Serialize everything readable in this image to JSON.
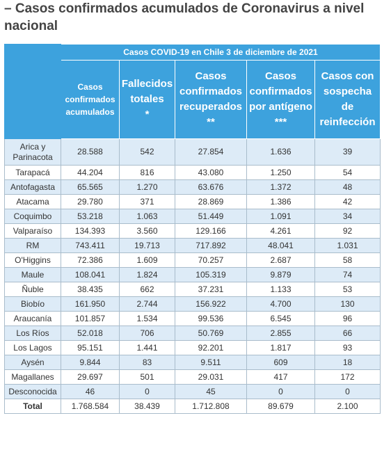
{
  "header": {
    "title": "– Casos confirmados acumulados de Coronavirus a nivel nacional"
  },
  "table": {
    "caption": "Casos COVID-19 en Chile 3 de diciembre de 2021",
    "columns": [
      "Casos confirmados acumulados",
      "Fallecidos totales\n*",
      "Casos confirmados recuperados\n**",
      "Casos confirmados por antígeno\n***",
      "Casos con sospecha de reinfección"
    ],
    "rows": [
      [
        "Arica y Parinacota",
        "28.588",
        "542",
        "27.854",
        "1.636",
        "39"
      ],
      [
        "Tarapacá",
        "44.204",
        "816",
        "43.080",
        "1.250",
        "54"
      ],
      [
        "Antofagasta",
        "65.565",
        "1.270",
        "63.676",
        "1.372",
        "48"
      ],
      [
        "Atacama",
        "29.780",
        "371",
        "28.869",
        "1.386",
        "42"
      ],
      [
        "Coquimbo",
        "53.218",
        "1.063",
        "51.449",
        "1.091",
        "34"
      ],
      [
        "Valparaíso",
        "134.393",
        "3.560",
        "129.166",
        "4.261",
        "92"
      ],
      [
        "RM",
        "743.411",
        "19.713",
        "717.892",
        "48.041",
        "1.031"
      ],
      [
        "O'Higgins",
        "72.386",
        "1.609",
        "70.257",
        "2.687",
        "58"
      ],
      [
        "Maule",
        "108.041",
        "1.824",
        "105.319",
        "9.879",
        "74"
      ],
      [
        "Ñuble",
        "38.435",
        "662",
        "37.231",
        "1.133",
        "53"
      ],
      [
        "Biobío",
        "161.950",
        "2.744",
        "156.922",
        "4.700",
        "130"
      ],
      [
        "Araucanía",
        "101.857",
        "1.534",
        "99.536",
        "6.545",
        "96"
      ],
      [
        "Los Ríos",
        "52.018",
        "706",
        "50.769",
        "2.855",
        "66"
      ],
      [
        "Los Lagos",
        "95.151",
        "1.441",
        "92.201",
        "1.817",
        "93"
      ],
      [
        "Aysén",
        "9.844",
        "83",
        "9.511",
        "609",
        "18"
      ],
      [
        "Magallanes",
        "29.697",
        "501",
        "29.031",
        "417",
        "172"
      ],
      [
        "Desconocida",
        "46",
        "0",
        "45",
        "0",
        "0"
      ],
      [
        "Total",
        "1.768.584",
        "38.439",
        "1.712.808",
        "89.679",
        "2.100"
      ]
    ]
  }
}
